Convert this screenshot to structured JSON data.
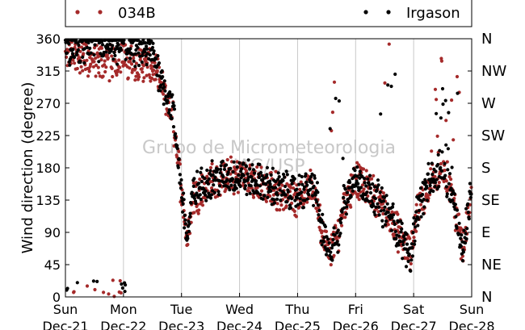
{
  "chart_data": {
    "type": "scatter",
    "title": "",
    "xlabel": "",
    "ylabel": "Wind direction (degree)",
    "watermark": [
      "Grupo de Micrometeorologia",
      "IAG/USP"
    ],
    "x_ticks": [
      {
        "day": "Sun",
        "date": "Dec-21"
      },
      {
        "day": "Mon",
        "date": "Dec-22"
      },
      {
        "day": "Tue",
        "date": "Dec-23"
      },
      {
        "day": "Wed",
        "date": "Dec-24"
      },
      {
        "day": "Thu",
        "date": "Dec-25"
      },
      {
        "day": "Fri",
        "date": "Dec-26"
      },
      {
        "day": "Sat",
        "date": "Dec-27"
      },
      {
        "day": "Sun",
        "date": "Dec-28"
      }
    ],
    "xlim_days": [
      "Dec-21",
      "Dec-28"
    ],
    "ylim": [
      0,
      360
    ],
    "y_ticks": [
      "0",
      "45",
      "90",
      "135",
      "180",
      "225",
      "270",
      "315",
      "360"
    ],
    "y2_ticks": [
      "N",
      "NE",
      "E",
      "SE",
      "S",
      "SW",
      "W",
      "NW",
      "N"
    ],
    "grid": "vertical lines at each day",
    "legend_position": "top",
    "series": [
      {
        "name": "034B",
        "color": "#a52a2a",
        "trend": [
          [
            0,
            340
          ],
          [
            0.5,
            328
          ],
          [
            1,
            330
          ],
          [
            1.5,
            320
          ],
          [
            1.65,
            295
          ],
          [
            1.85,
            250
          ],
          [
            2.0,
            150
          ],
          [
            2.1,
            80
          ],
          [
            2.2,
            140
          ],
          [
            2.5,
            160
          ],
          [
            3.0,
            170
          ],
          [
            3.5,
            150
          ],
          [
            4.0,
            140
          ],
          [
            4.3,
            150
          ],
          [
            4.4,
            100
          ],
          [
            4.55,
            55
          ],
          [
            4.7,
            90
          ],
          [
            4.8,
            130
          ],
          [
            5.0,
            165
          ],
          [
            5.3,
            145
          ],
          [
            5.6,
            110
          ],
          [
            5.8,
            80
          ],
          [
            5.95,
            55
          ],
          [
            6.05,
            120
          ],
          [
            6.3,
            160
          ],
          [
            6.5,
            175
          ],
          [
            6.7,
            130
          ],
          [
            6.85,
            60
          ],
          [
            7.0,
            150
          ]
        ]
      },
      {
        "name": "Irgason",
        "color": "#000000",
        "trend": [
          [
            0,
            350
          ],
          [
            0.5,
            352
          ],
          [
            1,
            348
          ],
          [
            1.5,
            340
          ],
          [
            1.65,
            305
          ],
          [
            1.85,
            260
          ],
          [
            2.0,
            150
          ],
          [
            2.1,
            80
          ],
          [
            2.2,
            145
          ],
          [
            2.5,
            165
          ],
          [
            3.0,
            170
          ],
          [
            3.5,
            155
          ],
          [
            4.0,
            145
          ],
          [
            4.3,
            155
          ],
          [
            4.4,
            100
          ],
          [
            4.55,
            55
          ],
          [
            4.7,
            90
          ],
          [
            4.8,
            135
          ],
          [
            5.0,
            165
          ],
          [
            5.3,
            145
          ],
          [
            5.6,
            110
          ],
          [
            5.8,
            80
          ],
          [
            5.95,
            55
          ],
          [
            6.05,
            120
          ],
          [
            6.3,
            165
          ],
          [
            6.5,
            180
          ],
          [
            6.7,
            130
          ],
          [
            6.85,
            60
          ],
          [
            7.0,
            160
          ]
        ]
      }
    ]
  }
}
